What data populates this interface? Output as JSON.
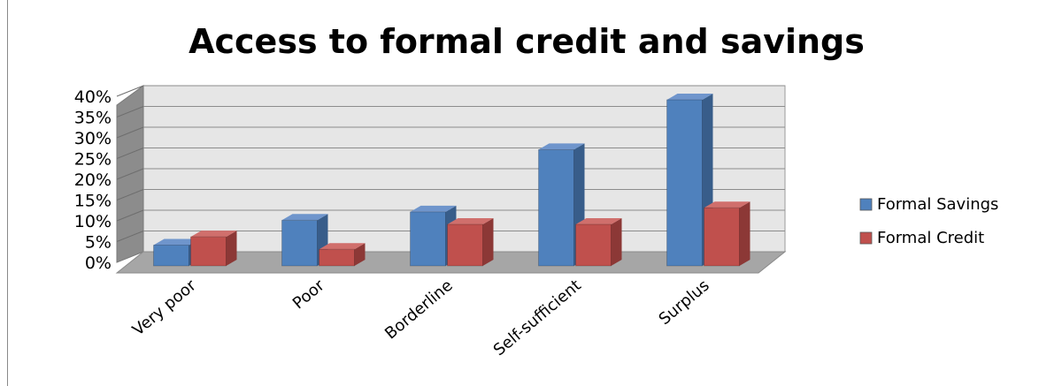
{
  "chart_data": {
    "type": "bar",
    "title": "Access to formal credit and savings",
    "categories": [
      "Very poor",
      "Poor",
      "Borderline",
      "Self-sufficient",
      "Surplus"
    ],
    "series": [
      {
        "name": "Formal Savings",
        "values": [
          5,
          11,
          13,
          28,
          40
        ]
      },
      {
        "name": "Formal Credit",
        "values": [
          7,
          4,
          10,
          10,
          14
        ]
      }
    ],
    "y_ticks": [
      "0%",
      "5%",
      "10%",
      "15%",
      "20%",
      "25%",
      "30%",
      "35%",
      "40%"
    ],
    "ylim": [
      0,
      40
    ],
    "grid": true,
    "legend_position": "right",
    "three_d": true
  },
  "colors": {
    "series": [
      "#4f81bd",
      "#c0504d"
    ],
    "series_side": [
      "#385d8a",
      "#8c3836"
    ],
    "series_top": [
      "#6f95cc",
      "#d06f6c"
    ],
    "wall": "#e6e6e6",
    "side_wall": "#8c8c8c",
    "floor": "#a6a6a6",
    "gridline": "#8c8c8c"
  }
}
